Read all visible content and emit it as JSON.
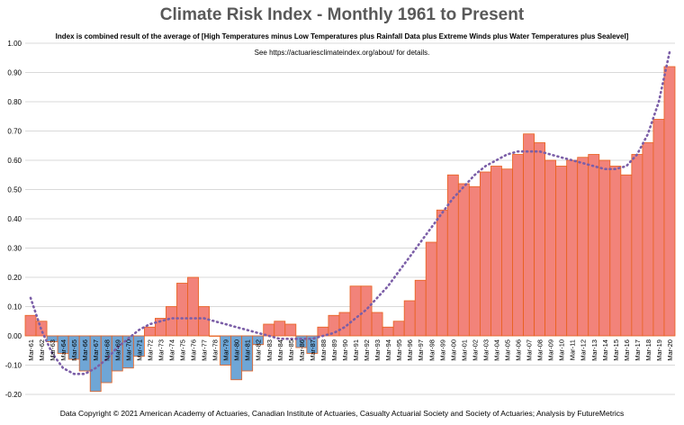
{
  "chart_data": {
    "type": "bar",
    "title": "Climate Risk Index - Monthly 1961 to Present",
    "subtitle": "Index is combined result of the average of [High Temperatures minus Low Temperatures plus Rainfall Data plus Extreme Winds plus Water Temperatures plus Sealevel]",
    "note": "See   https://actuariesclimateindex.org/about/   for details.",
    "credit": "Data Copyright © 2021 American Academy of Actuaries, Canadian Institute of Actuaries, Casualty Actuarial Society and Society of Actuaries; Analysis by FutureMetrics",
    "ylim": [
      -0.2,
      1.0
    ],
    "y_ticks": [
      "-0.20",
      "-0.10",
      "0.00",
      "0.10",
      "0.20",
      "0.30",
      "0.40",
      "0.50",
      "0.60",
      "0.70",
      "0.80",
      "0.90",
      "1.00"
    ],
    "x_tick_labels": [
      "Mar-61",
      "Mar-62",
      "Mar-63",
      "Mar-64",
      "Mar-65",
      "Mar-66",
      "Mar-67",
      "Mar-68",
      "Mar-69",
      "Mar-70",
      "Mar-71",
      "Mar-72",
      "Mar-73",
      "Mar-74",
      "Mar-75",
      "Mar-76",
      "Mar-77",
      "Mar-78",
      "Mar-79",
      "Mar-80",
      "Mar-81",
      "Mar-82",
      "Mar-83",
      "Mar-84",
      "Mar-85",
      "Mar-86",
      "Mar-87",
      "Mar-88",
      "Mar-89",
      "Mar-90",
      "Mar-91",
      "Mar-92",
      "Mar-93",
      "Mar-94",
      "Mar-95",
      "Mar-96",
      "Mar-97",
      "Mar-98",
      "Mar-99",
      "Mar-00",
      "Mar-01",
      "Mar-02",
      "Mar-03",
      "Mar-04",
      "Mar-05",
      "Mar-06",
      "Mar-07",
      "Mar-08",
      "Mar-09",
      "Mar-10",
      "Mar-11",
      "Mar-12",
      "Mar-13",
      "Mar-14",
      "Mar-15",
      "Mar-16",
      "Mar-17",
      "Mar-18",
      "Mar-19",
      "Mar-20"
    ],
    "series": [
      {
        "values": [
          0.07,
          0.05,
          -0.02,
          -0.06,
          -0.08,
          -0.12,
          -0.19,
          -0.16,
          -0.12,
          -0.11,
          -0.07,
          0.03,
          0.06,
          0.1,
          0.18,
          0.2,
          0.1,
          0.0,
          -0.1,
          -0.15,
          -0.12,
          -0.03,
          0.04,
          0.05,
          0.04,
          -0.04,
          -0.06,
          0.03,
          0.07,
          0.08,
          0.17,
          0.17,
          0.08,
          0.03,
          0.05,
          0.12,
          0.19,
          0.32,
          0.43,
          0.55,
          0.52,
          0.51,
          0.56,
          0.58,
          0.57,
          0.62,
          0.69,
          0.66,
          0.6,
          0.58,
          0.6,
          0.61,
          0.62,
          0.6,
          0.58,
          0.55,
          0.62,
          0.66,
          0.74,
          0.92
        ]
      },
      {
        "type": "trend",
        "values": [
          0.13,
          0.02,
          -0.06,
          -0.11,
          -0.13,
          -0.13,
          -0.11,
          -0.08,
          -0.04,
          -0.01,
          0.02,
          0.04,
          0.05,
          0.06,
          0.06,
          0.06,
          0.06,
          0.05,
          0.04,
          0.03,
          0.02,
          0.01,
          0.0,
          -0.01,
          -0.01,
          -0.01,
          -0.01,
          0.0,
          0.01,
          0.03,
          0.06,
          0.09,
          0.13,
          0.17,
          0.22,
          0.27,
          0.32,
          0.37,
          0.42,
          0.47,
          0.51,
          0.55,
          0.58,
          0.6,
          0.62,
          0.63,
          0.63,
          0.63,
          0.62,
          0.61,
          0.6,
          0.59,
          0.58,
          0.57,
          0.57,
          0.58,
          0.62,
          0.69,
          0.8,
          0.97
        ]
      }
    ],
    "colors": {
      "positive_fill": "#f2837a",
      "positive_outline": "#e8601c",
      "negative_fill": "#6fa6d6",
      "negative_outline": "#e8601c",
      "trend": "#7b5ea7",
      "grid": "#d9d9d9"
    },
    "grid": true
  }
}
